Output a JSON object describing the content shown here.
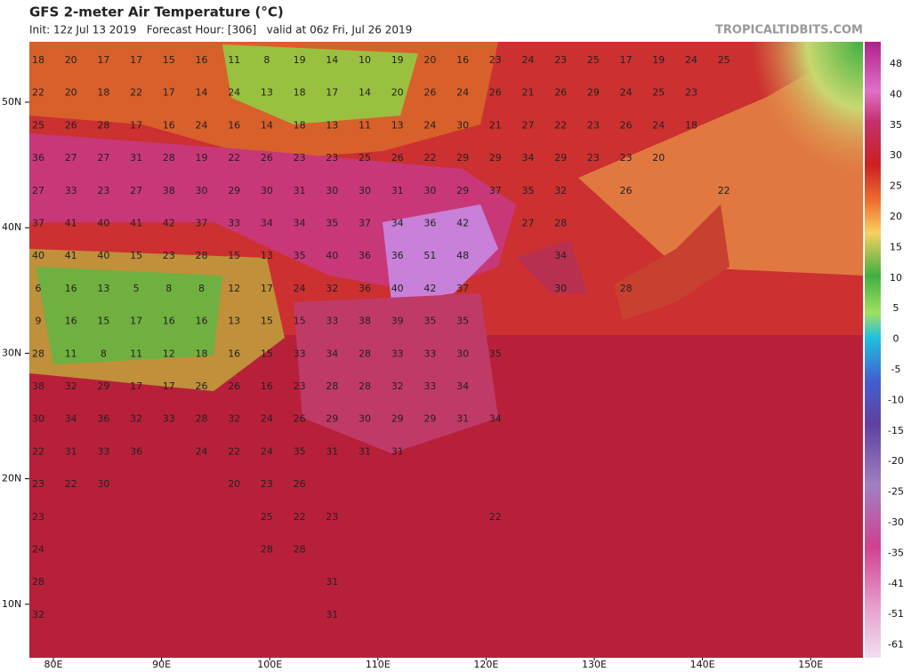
{
  "header": {
    "title": "GFS 2-meter Air Temperature (°C)",
    "subtitle": "Init: 12z Jul 13 2019   Forecast Hour: [306]   valid at 06z Fri, Jul 26 2019",
    "site": "TROPICALTIDBITS.COM"
  },
  "map": {
    "latitude_labels": [
      "50N",
      "40N",
      "30N",
      "20N",
      "10N"
    ],
    "longitude_labels": [
      "80E",
      "90E",
      "100E",
      "110E",
      "120E",
      "130E",
      "140E",
      "150E"
    ],
    "temperature_rows": [
      [
        18,
        20,
        17,
        17,
        15,
        16,
        11,
        8,
        19,
        14,
        10,
        19,
        20,
        16,
        23,
        24,
        23,
        25,
        17,
        19,
        24,
        25
      ],
      [
        22,
        20,
        18,
        22,
        17,
        14,
        24,
        13,
        18,
        17,
        14,
        20,
        26,
        24,
        26,
        21,
        26,
        29,
        24,
        25,
        23,
        null
      ],
      [
        25,
        26,
        28,
        17,
        16,
        24,
        16,
        14,
        18,
        13,
        11,
        13,
        24,
        30,
        21,
        27,
        22,
        23,
        26,
        24,
        18,
        null
      ],
      [
        36,
        27,
        27,
        31,
        28,
        19,
        22,
        26,
        23,
        23,
        25,
        26,
        22,
        29,
        29,
        34,
        29,
        23,
        23,
        20,
        null,
        null
      ],
      [
        27,
        33,
        23,
        27,
        38,
        30,
        29,
        30,
        31,
        30,
        30,
        31,
        30,
        29,
        37,
        35,
        32,
        null,
        26,
        null,
        null,
        22
      ],
      [
        37,
        41,
        40,
        41,
        42,
        37,
        33,
        34,
        34,
        35,
        37,
        34,
        36,
        42,
        null,
        27,
        28,
        null,
        null,
        null,
        null,
        null
      ],
      [
        40,
        41,
        40,
        15,
        23,
        28,
        15,
        13,
        35,
        40,
        36,
        36,
        51,
        48,
        null,
        null,
        34,
        null,
        null,
        null,
        null,
        null
      ],
      [
        6,
        16,
        13,
        5,
        8,
        8,
        12,
        17,
        24,
        32,
        36,
        40,
        42,
        37,
        null,
        null,
        30,
        null,
        28,
        null,
        null,
        null
      ],
      [
        9,
        16,
        15,
        17,
        16,
        16,
        13,
        15,
        15,
        33,
        38,
        39,
        35,
        35,
        null,
        null,
        null,
        null,
        null,
        null,
        null,
        null
      ],
      [
        28,
        11,
        8,
        11,
        12,
        18,
        16,
        15,
        33,
        34,
        28,
        33,
        33,
        30,
        35,
        null,
        null,
        null,
        null,
        null,
        null,
        null
      ],
      [
        38,
        32,
        29,
        17,
        17,
        26,
        26,
        16,
        23,
        28,
        28,
        32,
        33,
        34,
        null,
        null,
        null,
        null,
        null,
        null,
        null,
        null
      ],
      [
        30,
        34,
        36,
        32,
        33,
        28,
        32,
        24,
        26,
        29,
        30,
        29,
        29,
        31,
        34,
        null,
        null,
        null,
        null,
        null,
        null,
        null
      ],
      [
        22,
        31,
        33,
        36,
        null,
        24,
        22,
        24,
        35,
        31,
        31,
        31,
        null,
        null,
        null,
        null,
        null,
        null,
        null,
        null,
        null,
        null
      ],
      [
        23,
        22,
        30,
        null,
        null,
        null,
        20,
        23,
        26,
        null,
        null,
        null,
        null,
        null,
        null,
        null,
        null,
        null,
        null,
        null,
        null,
        null
      ],
      [
        23,
        null,
        null,
        null,
        null,
        null,
        null,
        25,
        22,
        23,
        null,
        null,
        null,
        null,
        22,
        null,
        null,
        null,
        null,
        null,
        null,
        null
      ],
      [
        24,
        null,
        null,
        null,
        null,
        null,
        null,
        28,
        28,
        null,
        null,
        null,
        null,
        null,
        null,
        null,
        null,
        null,
        null,
        null,
        null,
        null
      ],
      [
        28,
        null,
        null,
        null,
        null,
        null,
        null,
        null,
        null,
        31,
        null,
        null,
        null,
        null,
        null,
        null,
        null,
        null,
        null,
        null,
        null,
        null
      ],
      [
        32,
        null,
        null,
        null,
        null,
        null,
        null,
        null,
        null,
        31,
        null,
        null,
        null,
        null,
        null,
        null,
        null,
        null,
        null,
        null,
        null,
        null
      ]
    ]
  },
  "colorbar": {
    "labels": [
      "48",
      "40",
      "35",
      "30",
      "25",
      "20",
      "15",
      "10",
      "5",
      "0",
      "-5",
      "-10",
      "-15",
      "-20",
      "-25",
      "-30",
      "-35",
      "-41",
      "-51",
      "-61"
    ]
  }
}
